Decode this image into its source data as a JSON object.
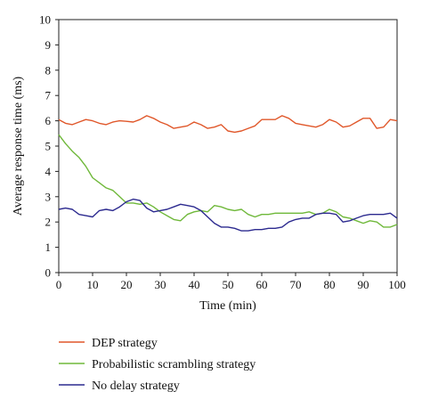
{
  "chart_data": {
    "type": "line",
    "xlabel": "Time (min)",
    "ylabel": "Average response time (ms)",
    "xlim": [
      0,
      100
    ],
    "ylim": [
      0,
      10
    ],
    "xticks": [
      0,
      10,
      20,
      30,
      40,
      50,
      60,
      70,
      80,
      90,
      100
    ],
    "yticks": [
      0,
      1,
      2,
      3,
      4,
      5,
      6,
      7,
      8,
      9,
      10
    ],
    "grid": false,
    "legend_position": "bottom",
    "x": [
      0,
      2,
      4,
      6,
      8,
      10,
      12,
      14,
      16,
      18,
      20,
      22,
      24,
      26,
      28,
      30,
      32,
      34,
      36,
      38,
      40,
      42,
      44,
      46,
      48,
      50,
      52,
      54,
      56,
      58,
      60,
      62,
      64,
      66,
      68,
      70,
      72,
      74,
      76,
      78,
      80,
      82,
      84,
      86,
      88,
      90,
      92,
      94,
      96,
      98,
      100
    ],
    "series": [
      {
        "name": "DEP strategy",
        "color": "#e0572a",
        "values": [
          6.05,
          5.9,
          5.85,
          5.95,
          6.05,
          6.0,
          5.9,
          5.85,
          5.95,
          6.0,
          5.98,
          5.95,
          6.05,
          6.2,
          6.1,
          5.95,
          5.85,
          5.7,
          5.75,
          5.8,
          5.95,
          5.85,
          5.7,
          5.75,
          5.85,
          5.6,
          5.55,
          5.6,
          5.7,
          5.8,
          6.05,
          6.05,
          6.05,
          6.2,
          6.1,
          5.9,
          5.85,
          5.8,
          5.75,
          5.85,
          6.05,
          5.95,
          5.75,
          5.8,
          5.95,
          6.1,
          6.1,
          5.7,
          5.75,
          6.05,
          6.0
        ]
      },
      {
        "name": "Probabilistic scrambling strategy",
        "color": "#6fb83a",
        "values": [
          5.45,
          5.1,
          4.8,
          4.55,
          4.2,
          3.75,
          3.55,
          3.35,
          3.25,
          3.0,
          2.75,
          2.75,
          2.7,
          2.75,
          2.6,
          2.4,
          2.25,
          2.1,
          2.05,
          2.3,
          2.4,
          2.45,
          2.4,
          2.65,
          2.6,
          2.5,
          2.45,
          2.5,
          2.3,
          2.2,
          2.3,
          2.3,
          2.35,
          2.35,
          2.35,
          2.35,
          2.35,
          2.4,
          2.3,
          2.35,
          2.5,
          2.4,
          2.2,
          2.15,
          2.05,
          1.95,
          2.05,
          2.0,
          1.8,
          1.8,
          1.9
        ]
      },
      {
        "name": "No delay strategy",
        "color": "#2c2a8f",
        "values": [
          2.5,
          2.55,
          2.5,
          2.3,
          2.25,
          2.2,
          2.45,
          2.5,
          2.45,
          2.6,
          2.8,
          2.9,
          2.85,
          2.55,
          2.4,
          2.45,
          2.5,
          2.6,
          2.7,
          2.65,
          2.6,
          2.45,
          2.2,
          1.95,
          1.8,
          1.8,
          1.75,
          1.65,
          1.65,
          1.7,
          1.7,
          1.75,
          1.75,
          1.8,
          2.0,
          2.1,
          2.15,
          2.15,
          2.3,
          2.35,
          2.35,
          2.3,
          2.0,
          2.05,
          2.15,
          2.25,
          2.3,
          2.3,
          2.3,
          2.35,
          2.15
        ]
      }
    ]
  }
}
